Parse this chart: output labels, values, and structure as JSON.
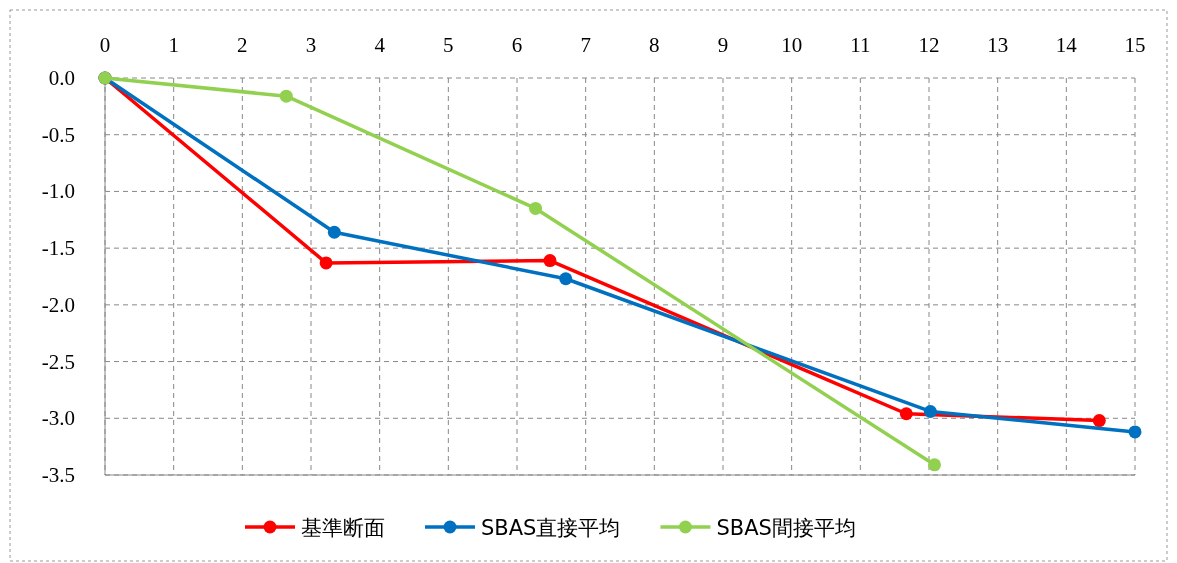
{
  "chart_data": {
    "type": "line",
    "xlim": [
      0,
      15
    ],
    "xticks": [
      0,
      1,
      2,
      3,
      4,
      5,
      6,
      7,
      8,
      9,
      10,
      11,
      12,
      13,
      14,
      15
    ],
    "ylim": [
      -3.5,
      0
    ],
    "yticks": [
      {
        "value": 0,
        "label": "0.0"
      },
      {
        "value": -0.5,
        "label": "-0.5"
      },
      {
        "value": -1,
        "label": "-1.0"
      },
      {
        "value": -1.5,
        "label": "-1.5"
      },
      {
        "value": -2,
        "label": "-2.0"
      },
      {
        "value": -2.5,
        "label": "-2.5"
      },
      {
        "value": -3,
        "label": "-3.0"
      },
      {
        "value": -3.5,
        "label": "-3.5"
      }
    ],
    "grid": true,
    "legend": "bottom",
    "marker": "circle",
    "line_style": "solid",
    "series": [
      {
        "name": "基準断面",
        "color": "#ff0000",
        "x": [
          0,
          3.22,
          6.48,
          11.67,
          14.48
        ],
        "values": [
          0,
          -1.63,
          -1.61,
          -2.96,
          -3.02
        ]
      },
      {
        "name": "SBAS直接平均",
        "color": "#0070c0",
        "x": [
          0,
          3.34,
          6.71,
          12.02,
          15
        ],
        "values": [
          0,
          -1.36,
          -1.77,
          -2.94,
          -3.12
        ]
      },
      {
        "name": "SBAS間接平均",
        "color": "#92d050",
        "x": [
          0,
          2.64,
          6.27,
          12.08
        ],
        "values": [
          0,
          -0.16,
          -1.15,
          -3.41
        ]
      }
    ]
  }
}
